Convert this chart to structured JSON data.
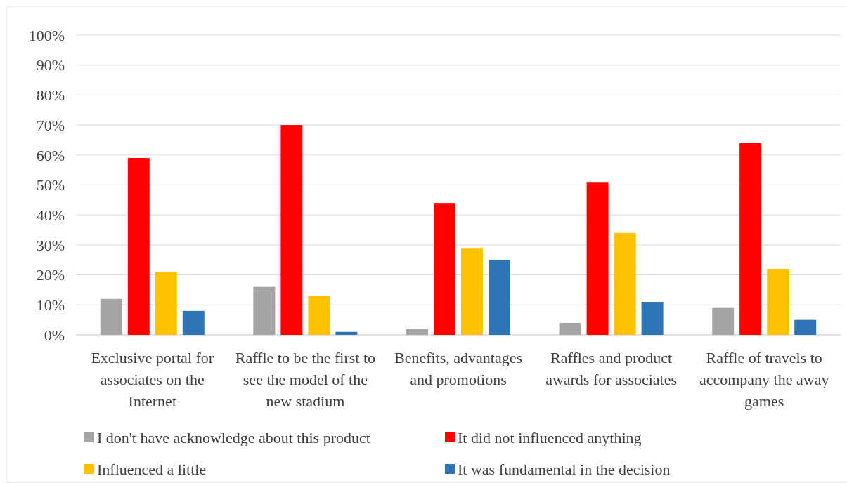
{
  "chart_data": {
    "type": "bar",
    "categories": [
      "Exclusive portal for associates on the Internet",
      "Raffle to be the first to see the model of the new stadium",
      "Benefits, advantages and promotions",
      "Raffles and product awards for associates",
      "Raffle of travels to accompany the away games"
    ],
    "series": [
      {
        "name": "I don't have acknowledge about this product",
        "color": "#a5a5a5",
        "values": [
          12,
          16,
          2,
          4,
          9
        ]
      },
      {
        "name": "It did not influenced anything",
        "color": "#ff0000",
        "values": [
          59,
          70,
          44,
          51,
          64
        ]
      },
      {
        "name": "Influenced a little",
        "color": "#ffc000",
        "values": [
          21,
          13,
          29,
          34,
          22
        ]
      },
      {
        "name": "It was fundamental in the decision",
        "color": "#2e75b6",
        "values": [
          8,
          1,
          25,
          11,
          5
        ]
      }
    ],
    "ylim": [
      0,
      100
    ],
    "yticks": [
      {
        "value": 0,
        "label": "0%"
      },
      {
        "value": 10,
        "label": "10%"
      },
      {
        "value": 20,
        "label": "20%"
      },
      {
        "value": 30,
        "label": "30%"
      },
      {
        "value": 40,
        "label": "40%"
      },
      {
        "value": 50,
        "label": "50%"
      },
      {
        "value": 60,
        "label": "60%"
      },
      {
        "value": 70,
        "label": "70%"
      },
      {
        "value": 80,
        "label": "80%"
      },
      {
        "value": 90,
        "label": "90%"
      },
      {
        "value": 100,
        "label": "100%"
      }
    ],
    "grid": "y",
    "legend": "bottom"
  }
}
